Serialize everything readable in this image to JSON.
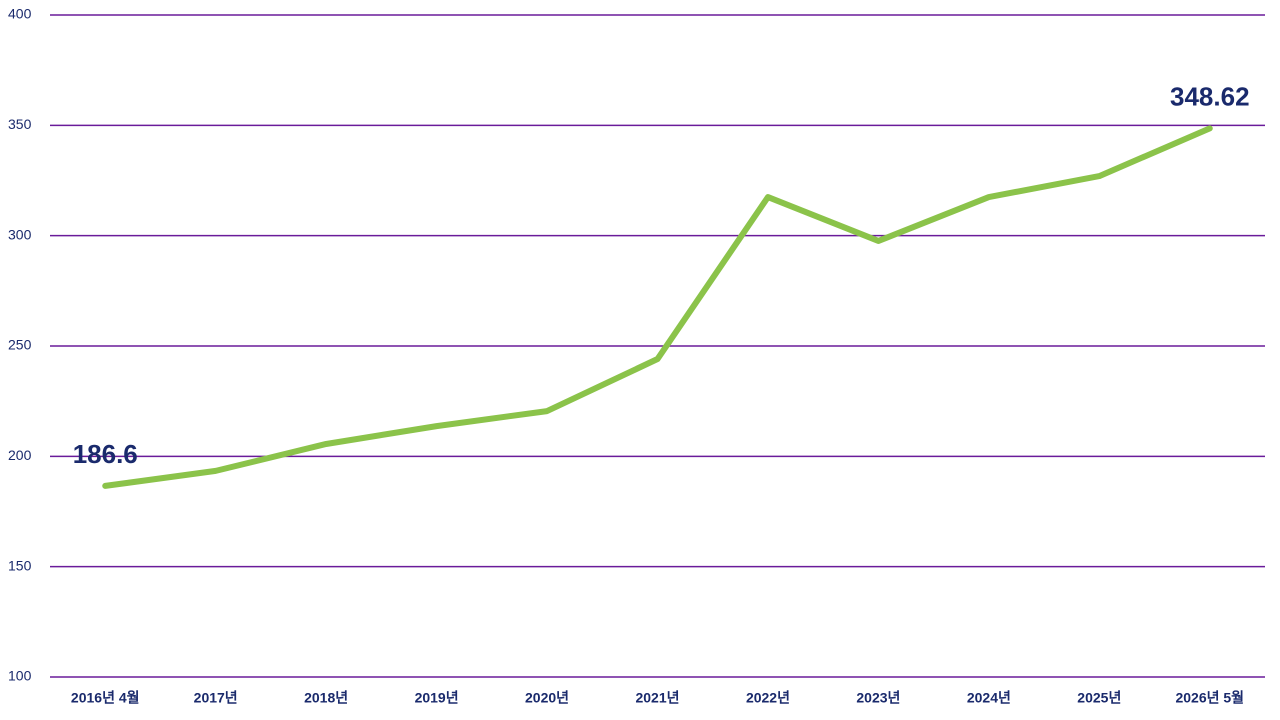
{
  "chart_data": {
    "type": "line",
    "categories": [
      "2016년 4월",
      "2017년",
      "2018년",
      "2019년",
      "2020년",
      "2021년",
      "2022년",
      "2023년",
      "2024년",
      "2025년",
      "2026년 5월"
    ],
    "values": [
      186.6,
      193.4,
      205.6,
      213.7,
      220.5,
      244.1,
      317.5,
      297.6,
      317.5,
      327.0,
      348.62
    ],
    "color": "#8bc34a",
    "ylim": [
      100,
      400
    ],
    "yticks": [
      100,
      150,
      200,
      250,
      300,
      350,
      400
    ],
    "grid": true,
    "grid_color": "#6a1b9a"
  }
}
